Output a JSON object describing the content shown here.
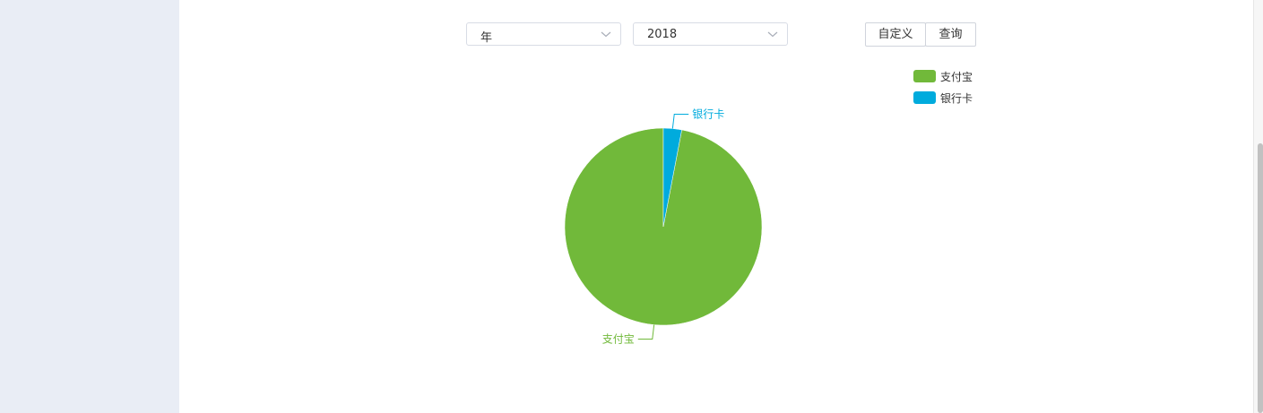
{
  "filters": {
    "period": {
      "value": "年"
    },
    "year": {
      "value": "2018"
    }
  },
  "buttons": {
    "custom_label": "自定义",
    "query_label": "查询"
  },
  "chart_data": {
    "type": "pie",
    "series": [
      {
        "name": "支付宝",
        "value": 97,
        "color": "#71b93a"
      },
      {
        "name": "银行卡",
        "value": 3,
        "color": "#00abdd"
      }
    ],
    "legend": [
      "支付宝",
      "银行卡"
    ],
    "legend_position": "top-right",
    "labels": [
      "支付宝",
      "银行卡"
    ]
  }
}
